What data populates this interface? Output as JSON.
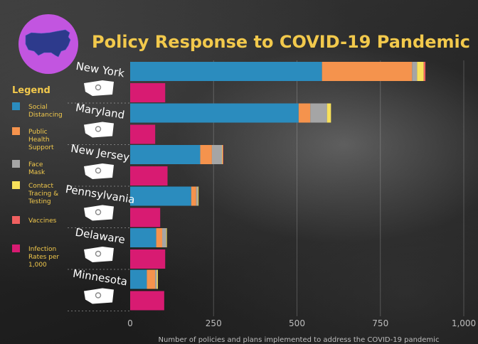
{
  "chart_data": {
    "type": "bar",
    "title": "Policy Response to COVID-19 Pandemic",
    "xlabel": "Number of policies and plans implemented to address the COVID-19 pandemic",
    "xlim": [
      0,
      1000
    ],
    "xticks": [
      "0",
      "250",
      "500",
      "750",
      "1,000"
    ],
    "xtick_values": [
      0,
      250,
      500,
      750,
      1000
    ],
    "legend_title": "Legend",
    "legend": [
      {
        "key": "social",
        "lines": [
          "Social",
          "Distancing"
        ],
        "color": "#2b8cbe"
      },
      {
        "key": "public",
        "lines": [
          "Public",
          "Health",
          "Support"
        ],
        "color": "#f5934d"
      },
      {
        "key": "mask",
        "lines": [
          "Face",
          "Mask"
        ],
        "color": "#a5a5a5"
      },
      {
        "key": "tracing",
        "lines": [
          "Contact",
          "Tracing &",
          "Testing"
        ],
        "color": "#f7e05a"
      },
      {
        "key": "vaccines",
        "lines": [
          "Vaccines"
        ],
        "color": "#f06060"
      },
      {
        "key": "infection",
        "lines": [
          "Infection",
          "Rates per",
          "1,000"
        ],
        "color": "#d81b72"
      }
    ],
    "states": [
      {
        "name": "New York",
        "policies": {
          "social": 575,
          "public": 270,
          "mask": 15,
          "tracing": 20,
          "vaccines": 5
        },
        "infection": 105
      },
      {
        "name": "Maryland",
        "policies": {
          "social": 505,
          "public": 35,
          "mask": 50,
          "tracing": 12,
          "vaccines": 0
        },
        "infection": 75
      },
      {
        "name": "New Jersey",
        "policies": {
          "social": 210,
          "public": 35,
          "mask": 30,
          "tracing": 2,
          "vaccines": 2
        },
        "infection": 112
      },
      {
        "name": "Pennsylvania",
        "policies": {
          "social": 183,
          "public": 15,
          "mask": 5,
          "tracing": 2,
          "vaccines": 0
        },
        "infection": 90
      },
      {
        "name": "Delaware",
        "policies": {
          "social": 78,
          "public": 18,
          "mask": 12,
          "tracing": 2,
          "vaccines": 0
        },
        "infection": 105
      },
      {
        "name": "Minnesota",
        "policies": {
          "social": 50,
          "public": 25,
          "mask": 5,
          "tracing": 3,
          "vaccines": 0
        },
        "infection": 102
      }
    ]
  },
  "colors": {
    "title": "#f2c94c",
    "legend_title": "#f2c94c",
    "map_circle": "#c255e0",
    "map_fill": "#2d3a8c"
  }
}
